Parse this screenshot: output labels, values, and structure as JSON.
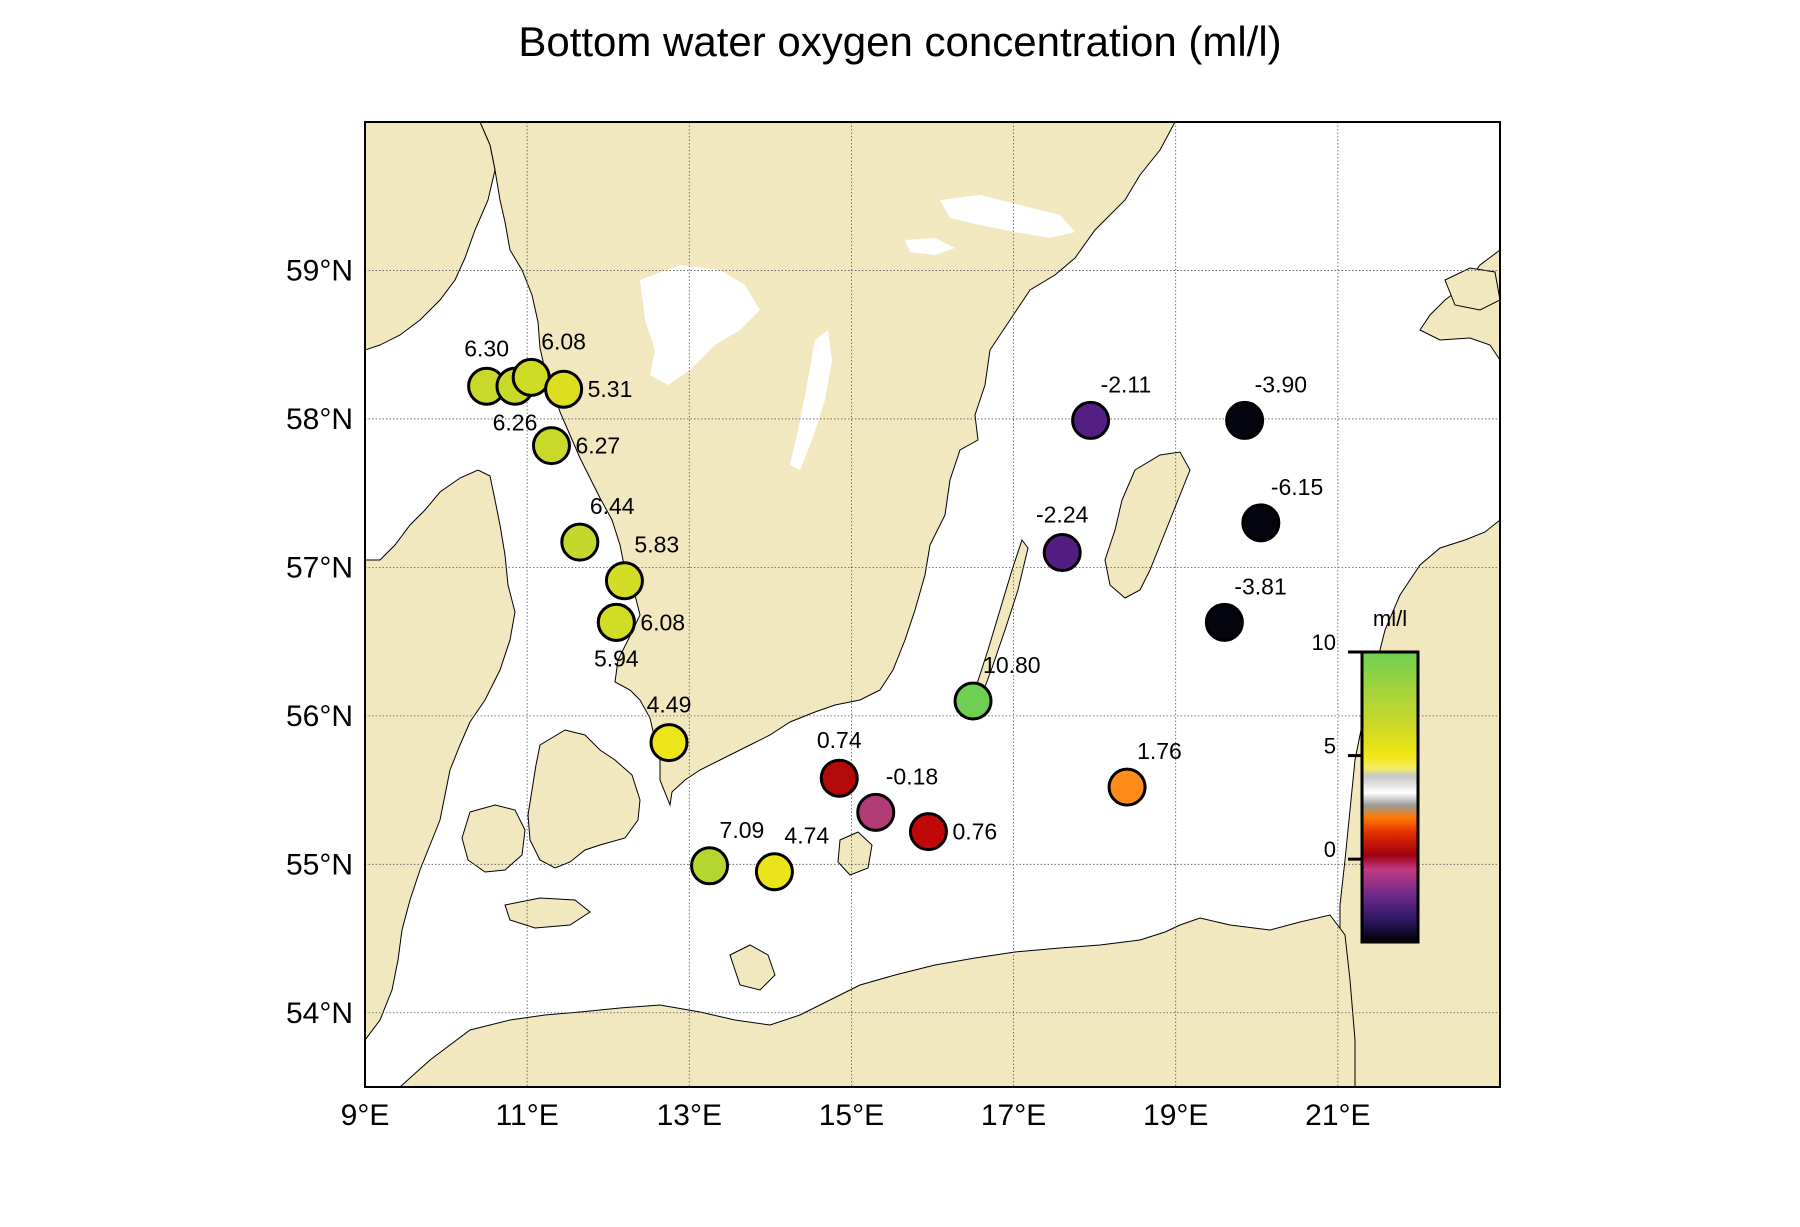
{
  "title": "Bottom water oxygen concentration (ml/l)",
  "map": {
    "lon_range": [
      9,
      23
    ],
    "lat_range": [
      53.5,
      60
    ],
    "grid": true,
    "land_color": "#f1e8c0",
    "water_color": "#ffffff",
    "lon_ticks": [
      {
        "value": 9,
        "label": "9°E"
      },
      {
        "value": 11,
        "label": "11°E"
      },
      {
        "value": 13,
        "label": "13°E"
      },
      {
        "value": 15,
        "label": "15°E"
      },
      {
        "value": 17,
        "label": "17°E"
      },
      {
        "value": 19,
        "label": "19°E"
      },
      {
        "value": 21,
        "label": "21°E"
      }
    ],
    "lat_ticks": [
      {
        "value": 54,
        "label": "54°N"
      },
      {
        "value": 55,
        "label": "55°N"
      },
      {
        "value": 56,
        "label": "56°N"
      },
      {
        "value": 57,
        "label": "57°N"
      },
      {
        "value": 58,
        "label": "58°N"
      },
      {
        "value": 59,
        "label": "59°N"
      }
    ]
  },
  "stations": [
    {
      "lon": 10.5,
      "lat": 58.22,
      "value": 6.3,
      "label": "6.30",
      "color": "#c9d92a",
      "label_pos": "above"
    },
    {
      "lon": 10.85,
      "lat": 58.22,
      "value": 6.26,
      "label": "6.26",
      "color": "#c9d92a",
      "label_pos": "below"
    },
    {
      "lon": 11.05,
      "lat": 58.28,
      "value": 6.08,
      "label": "6.08",
      "color": "#cfdc26",
      "label_pos": "above-right"
    },
    {
      "lon": 11.45,
      "lat": 58.2,
      "value": 5.31,
      "label": "5.31",
      "color": "#dede20",
      "label_pos": "right"
    },
    {
      "lon": 11.3,
      "lat": 57.82,
      "value": 6.27,
      "label": "6.27",
      "color": "#c9d92a",
      "label_pos": "right"
    },
    {
      "lon": 11.65,
      "lat": 57.17,
      "value": 6.44,
      "label": "6.44",
      "color": "#c4d72c",
      "label_pos": "above-right"
    },
    {
      "lon": 12.2,
      "lat": 56.91,
      "value": 5.83,
      "label": "5.83",
      "color": "#d3dd25",
      "label_pos": "above-right"
    },
    {
      "lon": 12.1,
      "lat": 56.63,
      "value": 6.08,
      "label": "6.08",
      "color": "#cfdc26",
      "label_pos": "right"
    },
    {
      "lon": 12.1,
      "lat": 56.63,
      "value": 5.94,
      "label": "5.94",
      "color": "#d1dc25",
      "label_pos": "below"
    },
    {
      "lon": 12.75,
      "lat": 55.82,
      "value": 4.49,
      "label": "4.49",
      "color": "#ede51a",
      "label_pos": "above"
    },
    {
      "lon": 13.25,
      "lat": 54.99,
      "value": 7.09,
      "label": "7.09",
      "color": "#b5d531",
      "label_pos": "above-right"
    },
    {
      "lon": 14.05,
      "lat": 54.95,
      "value": 4.74,
      "label": "4.74",
      "color": "#ebe41b",
      "label_pos": "above-right"
    },
    {
      "lon": 14.85,
      "lat": 55.58,
      "value": 0.74,
      "label": "0.74",
      "color": "#b50a0a",
      "label_pos": "above"
    },
    {
      "lon": 15.3,
      "lat": 55.35,
      "value": -0.18,
      "label": "-0.18",
      "color": "#b23c78",
      "label_pos": "above-right"
    },
    {
      "lon": 15.95,
      "lat": 55.22,
      "value": 0.76,
      "label": "0.76",
      "color": "#c00808",
      "label_pos": "right"
    },
    {
      "lon": 16.5,
      "lat": 56.1,
      "value": 10.8,
      "label": "10.80",
      "color": "#6fcf52",
      "label_pos": "above-right"
    },
    {
      "lon": 18.4,
      "lat": 55.52,
      "value": 1.76,
      "label": "1.76",
      "color": "#ff8c1a",
      "label_pos": "above-right"
    },
    {
      "lon": 17.95,
      "lat": 57.99,
      "value": -2.11,
      "label": "-2.11",
      "color": "#541f85",
      "label_pos": "above-right"
    },
    {
      "lon": 17.6,
      "lat": 57.1,
      "value": -2.24,
      "label": "-2.24",
      "color": "#521e82",
      "label_pos": "above"
    },
    {
      "lon": 19.85,
      "lat": 57.99,
      "value": -3.9,
      "label": "-3.90",
      "color": "#050510",
      "label_pos": "above-right"
    },
    {
      "lon": 20.05,
      "lat": 57.3,
      "value": -6.15,
      "label": "-6.15",
      "color": "#050510",
      "label_pos": "above-right"
    },
    {
      "lon": 19.6,
      "lat": 56.63,
      "value": -3.81,
      "label": "-3.81",
      "color": "#050510",
      "label_pos": "above-right"
    }
  ],
  "colorbar": {
    "title": "ml/l",
    "ticks": [
      {
        "value": 10,
        "label": "10"
      },
      {
        "value": 5,
        "label": "5"
      },
      {
        "value": 0,
        "label": "0"
      }
    ],
    "range": [
      -4,
      10
    ],
    "stops": [
      {
        "value": 10,
        "color": "#6fcf52"
      },
      {
        "value": 8,
        "color": "#a8d43a"
      },
      {
        "value": 6.5,
        "color": "#cbd82a"
      },
      {
        "value": 5,
        "color": "#f2e614"
      },
      {
        "value": 4.4,
        "color": "#f5ee60"
      },
      {
        "value": 4,
        "color": "#c8c8c8"
      },
      {
        "value": 3.2,
        "color": "#ffffff"
      },
      {
        "value": 2.6,
        "color": "#9a9a9a"
      },
      {
        "value": 2.0,
        "color": "#ff7a00"
      },
      {
        "value": 1.2,
        "color": "#e02a00"
      },
      {
        "value": 0.2,
        "color": "#a00010"
      },
      {
        "value": -0.5,
        "color": "#c23a84"
      },
      {
        "value": -1.8,
        "color": "#6a2a8a"
      },
      {
        "value": -3,
        "color": "#2a1660"
      },
      {
        "value": -4,
        "color": "#000000"
      }
    ]
  }
}
